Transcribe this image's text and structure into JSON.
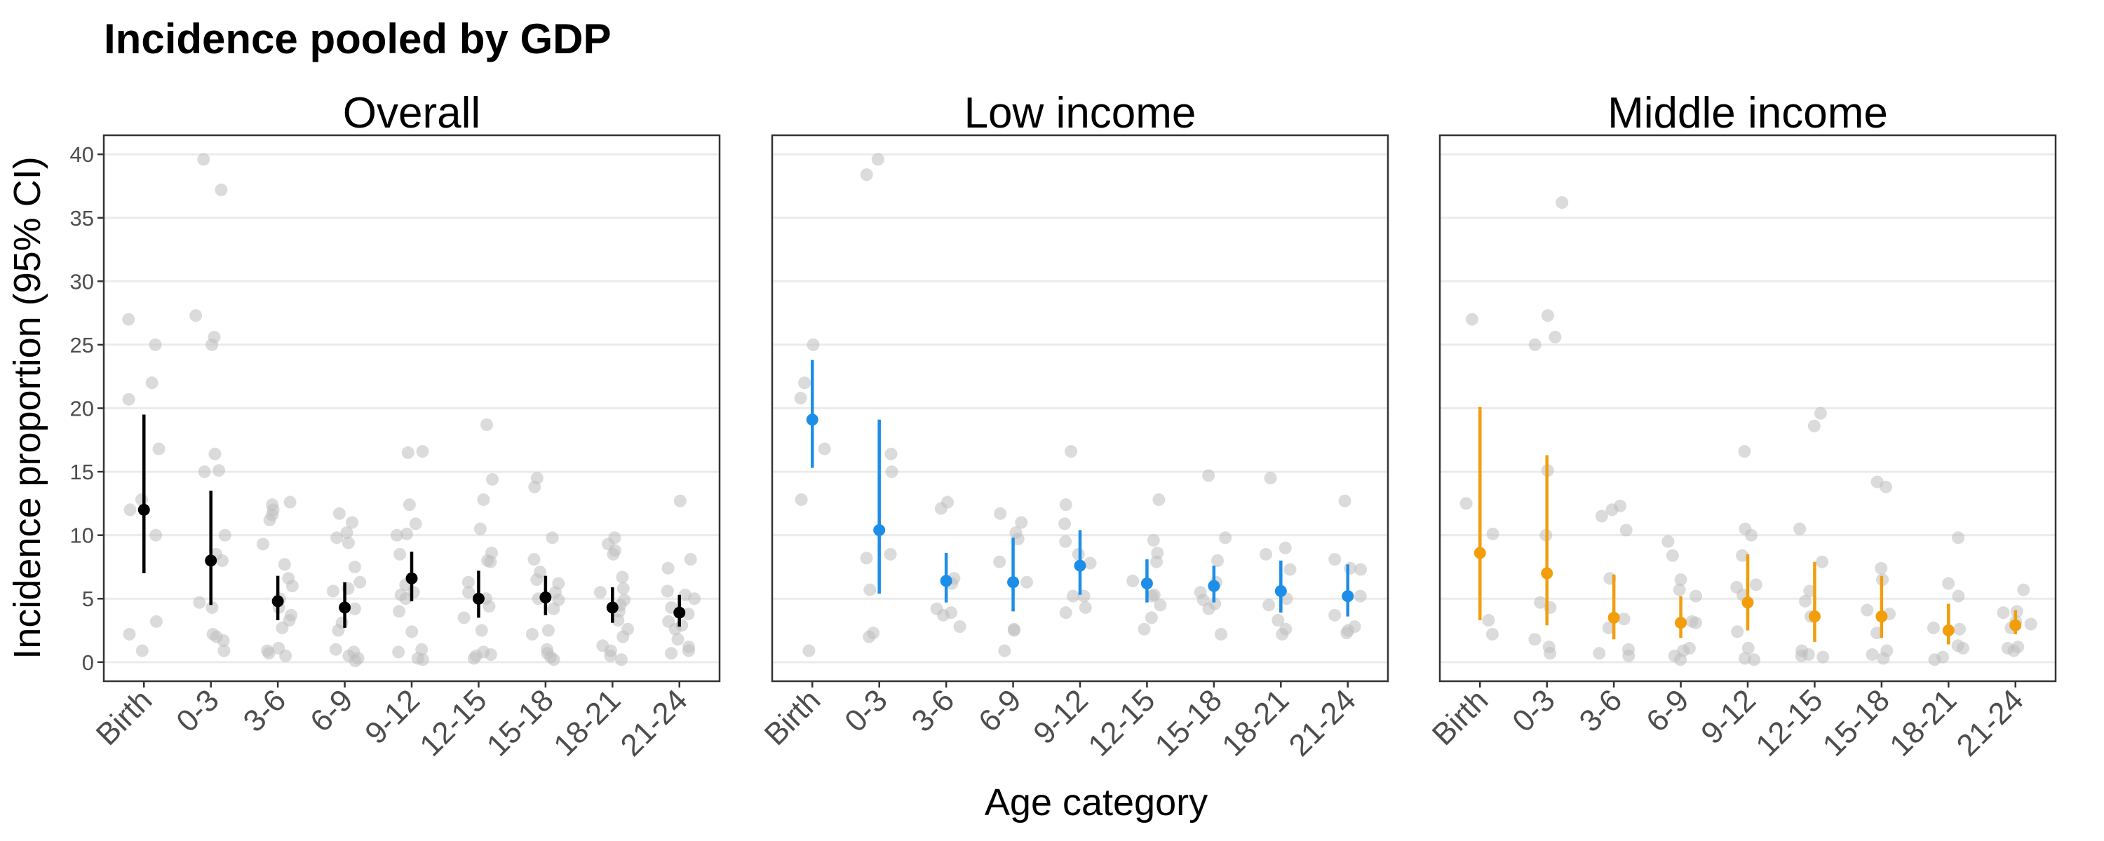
{
  "chart_data": {
    "type": "scatter",
    "title": "Incidence pooled by GDP",
    "xlabel": "Age category",
    "ylabel": "Incidence proportion (95% CI)",
    "ylim": [
      -1.5,
      41.5
    ],
    "yticks": [
      0,
      5,
      10,
      15,
      20,
      25,
      30,
      35,
      40
    ],
    "categories": [
      "Birth",
      "0-3",
      "3-6",
      "6-9",
      "9-12",
      "12-15",
      "15-18",
      "18-21",
      "21-24"
    ],
    "grid": "horizontal major gridlines",
    "colors": {
      "point": "#bdbdbd",
      "panel_border": "#333333",
      "grid": "#ebebeb"
    },
    "panels": [
      {
        "label": "Overall",
        "color": "#000000",
        "pooled": [
          {
            "cat": "Birth",
            "est": 12.0,
            "lo": 7.0,
            "hi": 19.5
          },
          {
            "cat": "0-3",
            "est": 8.0,
            "lo": 4.5,
            "hi": 13.5
          },
          {
            "cat": "3-6",
            "est": 4.8,
            "lo": 3.3,
            "hi": 6.8
          },
          {
            "cat": "6-9",
            "est": 4.3,
            "lo": 2.7,
            "hi": 6.3
          },
          {
            "cat": "9-12",
            "est": 6.6,
            "lo": 4.8,
            "hi": 8.7
          },
          {
            "cat": "12-15",
            "est": 5.0,
            "lo": 3.5,
            "hi": 7.2
          },
          {
            "cat": "15-18",
            "est": 5.1,
            "lo": 3.7,
            "hi": 6.8
          },
          {
            "cat": "18-21",
            "est": 4.3,
            "lo": 3.1,
            "hi": 5.9
          },
          {
            "cat": "21-24",
            "est": 3.9,
            "lo": 2.8,
            "hi": 5.3
          }
        ],
        "studies": [
          {
            "cat": "Birth",
            "values": [
              27.0,
              25.0,
              22.0,
              20.7,
              16.8,
              12.8,
              12.0,
              10.0,
              3.2,
              2.2,
              0.9
            ]
          },
          {
            "cat": "0-3",
            "values": [
              39.6,
              37.2,
              27.3,
              25.6,
              25.0,
              16.4,
              15.1,
              15.0,
              10.0,
              8.5,
              8.0,
              4.7,
              4.3,
              2.2,
              2.0,
              1.7,
              0.9
            ]
          },
          {
            "cat": "3-6",
            "values": [
              12.6,
              12.4,
              12.0,
              11.6,
              11.2,
              9.3,
              7.7,
              6.6,
              6.0,
              5.0,
              4.3,
              3.7,
              3.3,
              2.7,
              1.1,
              0.9,
              0.7,
              0.5
            ]
          },
          {
            "cat": "6-9",
            "values": [
              11.7,
              11.0,
              10.2,
              9.8,
              9.4,
              7.5,
              6.3,
              5.8,
              5.6,
              4.2,
              3.1,
              2.5,
              1.0,
              0.8,
              0.5,
              0.3,
              0.1
            ]
          },
          {
            "cat": "9-12",
            "values": [
              16.6,
              16.5,
              12.4,
              10.9,
              10.1,
              10.0,
              8.5,
              6.1,
              5.5,
              5.3,
              5.0,
              4.0,
              2.4,
              1.0,
              0.8,
              0.3,
              0.2
            ]
          },
          {
            "cat": "12-15",
            "values": [
              18.7,
              14.4,
              12.8,
              10.5,
              8.6,
              8.0,
              7.9,
              6.3,
              5.5,
              5.0,
              4.4,
              3.5,
              2.5,
              0.8,
              0.6,
              0.5,
              0.3
            ]
          },
          {
            "cat": "15-18",
            "values": [
              14.5,
              13.8,
              9.8,
              8.1,
              7.1,
              6.5,
              6.2,
              5.5,
              5.0,
              4.9,
              4.2,
              2.5,
              2.2,
              1.0,
              0.7,
              0.4,
              0.2
            ]
          },
          {
            "cat": "18-21",
            "values": [
              9.8,
              9.3,
              8.8,
              8.5,
              6.7,
              5.8,
              5.5,
              4.9,
              4.5,
              4.0,
              3.3,
              2.6,
              2.0,
              1.3,
              0.9,
              0.5,
              0.2
            ]
          },
          {
            "cat": "21-24",
            "values": [
              12.7,
              8.1,
              7.4,
              5.6,
              5.3,
              5.0,
              4.3,
              3.8,
              3.2,
              2.9,
              2.6,
              1.8,
              1.2,
              0.9,
              0.7
            ]
          }
        ]
      },
      {
        "label": "Low income",
        "color": "#1d8ee8",
        "pooled": [
          {
            "cat": "Birth",
            "est": 19.1,
            "lo": 15.3,
            "hi": 23.8
          },
          {
            "cat": "0-3",
            "est": 10.4,
            "lo": 5.4,
            "hi": 19.1
          },
          {
            "cat": "3-6",
            "est": 6.4,
            "lo": 4.7,
            "hi": 8.6
          },
          {
            "cat": "6-9",
            "est": 6.3,
            "lo": 4.0,
            "hi": 9.8
          },
          {
            "cat": "9-12",
            "est": 7.6,
            "lo": 5.3,
            "hi": 10.4
          },
          {
            "cat": "12-15",
            "est": 6.2,
            "lo": 4.7,
            "hi": 8.1
          },
          {
            "cat": "15-18",
            "est": 6.0,
            "lo": 4.7,
            "hi": 7.6
          },
          {
            "cat": "18-21",
            "est": 5.6,
            "lo": 3.9,
            "hi": 8.0
          },
          {
            "cat": "21-24",
            "est": 5.2,
            "lo": 3.6,
            "hi": 7.7
          }
        ],
        "studies": [
          {
            "cat": "Birth",
            "values": [
              25.0,
              22.0,
              20.8,
              16.8,
              12.8,
              0.9
            ]
          },
          {
            "cat": "0-3",
            "values": [
              39.6,
              38.4,
              16.4,
              15.0,
              8.5,
              8.2,
              5.7,
              2.3,
              2.0
            ]
          },
          {
            "cat": "3-6",
            "values": [
              12.6,
              12.1,
              6.6,
              6.2,
              4.2,
              3.9,
              3.7,
              2.8
            ]
          },
          {
            "cat": "6-9",
            "values": [
              11.7,
              11.0,
              10.2,
              9.7,
              7.9,
              6.3,
              2.6,
              2.5,
              0.9
            ]
          },
          {
            "cat": "9-12",
            "values": [
              16.6,
              12.4,
              10.9,
              9.5,
              8.5,
              7.8,
              5.2,
              5.2,
              4.3,
              3.9
            ]
          },
          {
            "cat": "12-15",
            "values": [
              12.8,
              9.6,
              8.6,
              7.9,
              6.4,
              5.3,
              5.2,
              4.5,
              3.5,
              2.6
            ]
          },
          {
            "cat": "15-18",
            "values": [
              14.7,
              9.8,
              8.0,
              6.3,
              5.5,
              4.9,
              4.6,
              4.2,
              2.2
            ]
          },
          {
            "cat": "18-21",
            "values": [
              14.5,
              9.0,
              8.5,
              7.3,
              5.0,
              4.5,
              3.3,
              2.6,
              2.2
            ]
          },
          {
            "cat": "21-24",
            "values": [
              12.7,
              8.1,
              7.4,
              7.3,
              5.2,
              3.7,
              2.8,
              2.5,
              2.3
            ]
          }
        ]
      },
      {
        "label": "Middle income",
        "color": "#f29e0c",
        "pooled": [
          {
            "cat": "Birth",
            "est": 8.6,
            "lo": 3.3,
            "hi": 20.1
          },
          {
            "cat": "0-3",
            "est": 7.0,
            "lo": 2.9,
            "hi": 16.3
          },
          {
            "cat": "3-6",
            "est": 3.5,
            "lo": 1.8,
            "hi": 6.9
          },
          {
            "cat": "6-9",
            "est": 3.1,
            "lo": 1.9,
            "hi": 5.2
          },
          {
            "cat": "9-12",
            "est": 4.7,
            "lo": 2.5,
            "hi": 8.5
          },
          {
            "cat": "12-15",
            "est": 3.6,
            "lo": 1.6,
            "hi": 7.9
          },
          {
            "cat": "15-18",
            "est": 3.6,
            "lo": 1.9,
            "hi": 6.8
          },
          {
            "cat": "18-21",
            "est": 2.5,
            "lo": 1.4,
            "hi": 4.6
          },
          {
            "cat": "21-24",
            "est": 2.9,
            "lo": 2.2,
            "hi": 4.1
          }
        ],
        "studies": [
          {
            "cat": "Birth",
            "values": [
              27.0,
              12.5,
              10.1,
              3.3,
              2.2
            ]
          },
          {
            "cat": "0-3",
            "values": [
              36.2,
              27.3,
              25.6,
              25.0,
              15.1,
              10.0,
              4.7,
              4.3,
              1.8,
              1.2,
              0.7
            ]
          },
          {
            "cat": "3-6",
            "values": [
              12.3,
              12.0,
              11.5,
              10.4,
              6.6,
              3.4,
              2.7,
              1.0,
              0.7,
              0.5
            ]
          },
          {
            "cat": "6-9",
            "values": [
              9.5,
              8.4,
              6.5,
              5.7,
              5.2,
              3.2,
              3.1,
              1.1,
              0.9,
              0.5,
              0.2
            ]
          },
          {
            "cat": "9-12",
            "values": [
              16.6,
              10.5,
              10.0,
              8.4,
              6.1,
              5.9,
              5.3,
              2.4,
              1.1,
              0.3,
              0.2
            ]
          },
          {
            "cat": "12-15",
            "values": [
              19.6,
              18.6,
              10.5,
              7.9,
              5.6,
              4.8,
              3.6,
              0.9,
              0.6,
              0.5,
              0.4
            ]
          },
          {
            "cat": "15-18",
            "values": [
              14.2,
              13.8,
              7.4,
              6.5,
              4.1,
              3.8,
              2.3,
              0.9,
              0.6,
              0.3
            ]
          },
          {
            "cat": "18-21",
            "values": [
              9.8,
              6.2,
              5.2,
              2.7,
              2.6,
              1.3,
              1.1,
              0.4,
              0.2
            ]
          },
          {
            "cat": "21-24",
            "values": [
              5.7,
              4.0,
              3.9,
              3.2,
              3.0,
              2.7,
              1.2,
              1.1,
              0.9
            ]
          }
        ]
      }
    ]
  }
}
